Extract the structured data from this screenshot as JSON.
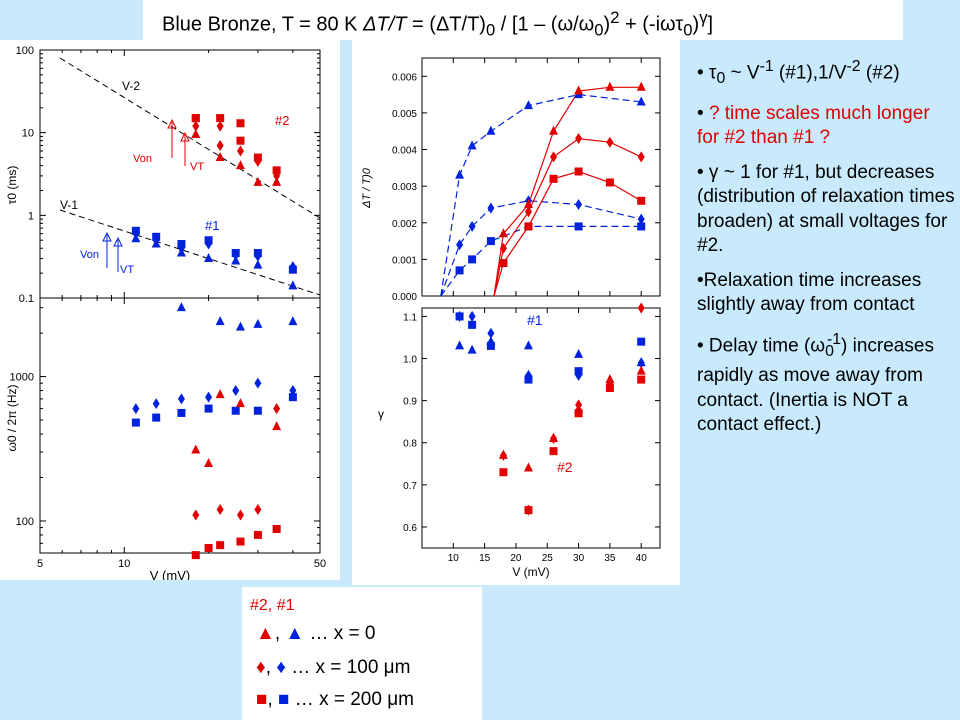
{
  "title": {
    "part1": "Blue Bronze, T = 80 K   ",
    "part2": "ΔT/T",
    "part3": " = (ΔT/T)",
    "sub0": "0",
    "part4": " / [1 – (ω/ω",
    "sub1": "0",
    "part5": ")",
    "sup2": "2",
    "part6": " + (-iωτ",
    "sub2": "0",
    "part7": ")",
    "supg": "γ",
    "part8": "]"
  },
  "legend": {
    "header": "#2, #1",
    "rows": [
      {
        "red": "▲",
        "sep": ", ",
        "blue": "▲",
        "text": " … x = 0"
      },
      {
        "red": "♦",
        "sep": ", ",
        "blue": "♦",
        "text": " … x = 100 μm"
      },
      {
        "red": "■",
        "sep": ", ",
        "blue": "■",
        "text": " … x = 200 μm"
      }
    ]
  },
  "bullets": [
    {
      "pre": "•  τ",
      "sub": "0",
      "mid": " ~ V",
      "sup": "-1",
      "post": " (#1),1/V",
      "sup2": "-2",
      "post2": " (#2)"
    },
    {
      "pre": "• ",
      "red": "? time scales much longer for #2 than #1 ?"
    },
    {
      "text": "• γ ~ 1 for #1, but decreases (distribution of relaxation times broaden) at small voltages for #2."
    },
    {
      "text": "•Relaxation time increases slightly away from contact"
    },
    {
      "pre": "• Delay time (ω",
      "sub": "0",
      "sup": "-1",
      "post": ") increases rapidly as move away from contact.  (Inertia is NOT a contact effect.)"
    }
  ],
  "colors": {
    "red": "#e00000",
    "blue": "#0022dd",
    "background": "#c8eafc"
  },
  "chart_data": [
    {
      "id": "tau0",
      "type": "scatter",
      "xscale": "log",
      "yscale": "log",
      "xlim": [
        5,
        50
      ],
      "ylim": [
        0.1,
        100
      ],
      "ylabel": "τ0 (ms)",
      "yticks": [
        "100",
        "10",
        "1",
        "0.1"
      ],
      "annotations": [
        "V-2",
        "V-1",
        "#2",
        "#1",
        "Von",
        "VT",
        "Von",
        "VT"
      ],
      "series": [
        {
          "name": "#2 x=0",
          "marker": "triangle",
          "color": "red",
          "points": [
            [
              18,
              9.5
            ],
            [
              22,
              5
            ],
            [
              26,
              4
            ],
            [
              30,
              2.5
            ],
            [
              35,
              2.5
            ]
          ]
        },
        {
          "name": "#2 x=100um",
          "marker": "diamond",
          "color": "red",
          "points": [
            [
              18,
              12
            ],
            [
              22,
              12
            ],
            [
              22,
              7
            ],
            [
              26,
              6
            ],
            [
              30,
              4.5
            ],
            [
              35,
              3
            ]
          ]
        },
        {
          "name": "#2 x=200um",
          "marker": "square",
          "color": "red",
          "points": [
            [
              18,
              15
            ],
            [
              18,
              15
            ],
            [
              22,
              15
            ],
            [
              26,
              13
            ],
            [
              26,
              8
            ],
            [
              30,
              5
            ],
            [
              35,
              3.5
            ]
          ]
        },
        {
          "name": "#1 x=0",
          "marker": "triangle",
          "color": "blue",
          "points": [
            [
              11,
              0.52
            ],
            [
              13,
              0.45
            ],
            [
              16,
              0.35
            ],
            [
              20,
              0.3
            ],
            [
              25,
              0.28
            ],
            [
              30,
              0.25
            ],
            [
              40,
              0.14
            ]
          ]
        },
        {
          "name": "#1 x=100um",
          "marker": "diamond",
          "color": "blue",
          "points": [
            [
              11,
              0.6
            ],
            [
              13,
              0.5
            ],
            [
              16,
              0.4
            ],
            [
              20,
              0.45
            ],
            [
              25,
              0.33
            ],
            [
              30,
              0.32
            ],
            [
              40,
              0.24
            ]
          ]
        },
        {
          "name": "#1 x=200um",
          "marker": "square",
          "color": "blue",
          "points": [
            [
              11,
              0.65
            ],
            [
              13,
              0.55
            ],
            [
              16,
              0.45
            ],
            [
              20,
              0.5
            ],
            [
              25,
              0.35
            ],
            [
              30,
              0.35
            ],
            [
              40,
              0.22
            ]
          ]
        }
      ]
    },
    {
      "id": "omega0",
      "type": "scatter",
      "xscale": "log",
      "yscale": "log",
      "xlim": [
        5,
        50
      ],
      "ylim": [
        60,
        3500
      ],
      "xlabel": "V  (mV)",
      "ylabel": "ω0 / 2π (Hz)",
      "xticks": [
        "5",
        "10",
        "50"
      ],
      "yticks": [
        "1000",
        "100"
      ],
      "series": [
        {
          "name": "#1 x=0",
          "marker": "triangle",
          "color": "blue",
          "points": [
            [
              16,
              3000
            ],
            [
              22,
              2400
            ],
            [
              26,
              2200
            ],
            [
              30,
              2300
            ],
            [
              40,
              2400
            ]
          ]
        },
        {
          "name": "#1 x=100um",
          "marker": "diamond",
          "color": "blue",
          "points": [
            [
              11,
              600
            ],
            [
              13,
              650
            ],
            [
              16,
              700
            ],
            [
              20,
              720
            ],
            [
              25,
              800
            ],
            [
              30,
              900
            ],
            [
              40,
              800
            ]
          ]
        },
        {
          "name": "#1 x=200um",
          "marker": "square",
          "color": "blue",
          "points": [
            [
              11,
              480
            ],
            [
              13,
              520
            ],
            [
              16,
              560
            ],
            [
              20,
              600
            ],
            [
              25,
              580
            ],
            [
              30,
              580
            ],
            [
              40,
              720
            ]
          ]
        },
        {
          "name": "#2 x=0",
          "marker": "triangle",
          "color": "red",
          "points": [
            [
              18,
              310
            ],
            [
              20,
              250
            ],
            [
              22,
              750
            ],
            [
              26,
              650
            ],
            [
              35,
              450
            ]
          ]
        },
        {
          "name": "#2 x=100um",
          "marker": "diamond",
          "color": "red",
          "points": [
            [
              18,
              110
            ],
            [
              22,
              120
            ],
            [
              26,
              110
            ],
            [
              30,
              120
            ],
            [
              35,
              600
            ]
          ]
        },
        {
          "name": "#2 x=200um",
          "marker": "square",
          "color": "red",
          "points": [
            [
              18,
              58
            ],
            [
              20,
              65
            ],
            [
              22,
              68
            ],
            [
              26,
              72
            ],
            [
              30,
              80
            ],
            [
              35,
              88
            ]
          ]
        }
      ]
    },
    {
      "id": "dTT0",
      "type": "scatter",
      "xlim": [
        5,
        43
      ],
      "ylim": [
        0,
        0.0065
      ],
      "ylabel": "ΔT / T)0",
      "yticks": [
        "0.000",
        "0.001",
        "0.002",
        "0.003",
        "0.004",
        "0.005",
        "0.006"
      ],
      "series": [
        {
          "name": "#1 x=0",
          "marker": "triangle",
          "color": "blue",
          "points": [
            [
              11,
              0.0033
            ],
            [
              13,
              0.0041
            ],
            [
              16,
              0.0045
            ],
            [
              22,
              0.0052
            ],
            [
              30,
              0.0055
            ],
            [
              40,
              0.0053
            ]
          ],
          "fit": "dashed"
        },
        {
          "name": "#1 x=100um",
          "marker": "diamond",
          "color": "blue",
          "points": [
            [
              11,
              0.0014
            ],
            [
              13,
              0.0019
            ],
            [
              16,
              0.0024
            ],
            [
              22,
              0.0026
            ],
            [
              30,
              0.0025
            ],
            [
              40,
              0.0021
            ]
          ],
          "fit": "dashed"
        },
        {
          "name": "#1 x=200um",
          "marker": "square",
          "color": "blue",
          "points": [
            [
              11,
              0.0007
            ],
            [
              13,
              0.001
            ],
            [
              16,
              0.0015
            ],
            [
              22,
              0.0019
            ],
            [
              30,
              0.0019
            ],
            [
              40,
              0.0019
            ]
          ],
          "fit": "dashed"
        },
        {
          "name": "#2 x=0",
          "marker": "triangle",
          "color": "red",
          "points": [
            [
              18,
              0.0017
            ],
            [
              22,
              0.0025
            ],
            [
              26,
              0.0045
            ],
            [
              30,
              0.0056
            ],
            [
              35,
              0.0057
            ],
            [
              40,
              0.0057
            ]
          ],
          "fit": "solid"
        },
        {
          "name": "#2 x=100um",
          "marker": "diamond",
          "color": "red",
          "points": [
            [
              18,
              0.0013
            ],
            [
              22,
              0.0023
            ],
            [
              26,
              0.0038
            ],
            [
              30,
              0.0043
            ],
            [
              35,
              0.0042
            ],
            [
              40,
              0.0038
            ]
          ],
          "fit": "solid"
        },
        {
          "name": "#2 x=200um",
          "marker": "square",
          "color": "red",
          "points": [
            [
              18,
              0.0009
            ],
            [
              22,
              0.0019
            ],
            [
              26,
              0.0032
            ],
            [
              30,
              0.0034
            ],
            [
              35,
              0.0031
            ],
            [
              40,
              0.0026
            ]
          ],
          "fit": "solid"
        }
      ]
    },
    {
      "id": "gamma",
      "type": "scatter",
      "xlim": [
        5,
        43
      ],
      "ylim": [
        0.55,
        1.12
      ],
      "xlabel": "V   (mV)",
      "ylabel": "γ",
      "xticks": [
        "10",
        "15",
        "20",
        "25",
        "30",
        "35",
        "40"
      ],
      "yticks": [
        "0.6",
        "0.7",
        "0.8",
        "0.9",
        "1.0",
        "1.1"
      ],
      "annotations": [
        "#1",
        "#2"
      ],
      "series": [
        {
          "name": "#1 x=0",
          "marker": "triangle",
          "color": "blue",
          "points": [
            [
              11,
              1.03
            ],
            [
              13,
              1.02
            ],
            [
              16,
              1.04
            ],
            [
              22,
              1.03
            ],
            [
              30,
              1.01
            ],
            [
              40,
              0.99
            ]
          ]
        },
        {
          "name": "#1 x=100um",
          "marker": "diamond",
          "color": "blue",
          "points": [
            [
              11,
              1.1
            ],
            [
              13,
              1.1
            ],
            [
              16,
              1.06
            ],
            [
              22,
              0.96
            ],
            [
              30,
              0.96
            ],
            [
              40,
              0.99
            ]
          ]
        },
        {
          "name": "#1 x=200um",
          "marker": "square",
          "color": "blue",
          "points": [
            [
              11,
              1.1
            ],
            [
              13,
              1.08
            ],
            [
              16,
              1.03
            ],
            [
              22,
              0.95
            ],
            [
              30,
              0.97
            ],
            [
              40,
              1.04
            ]
          ]
        },
        {
          "name": "#2 x=0",
          "marker": "triangle",
          "color": "red",
          "points": [
            [
              18,
              0.77
            ],
            [
              22,
              0.74
            ],
            [
              26,
              0.81
            ],
            [
              30,
              0.88
            ],
            [
              35,
              0.95
            ],
            [
              40,
              0.97
            ]
          ]
        },
        {
          "name": "#2 x=100um",
          "marker": "diamond",
          "color": "red",
          "points": [
            [
              18,
              0.77
            ],
            [
              22,
              0.64
            ],
            [
              26,
              0.81
            ],
            [
              30,
              0.89
            ],
            [
              35,
              0.94
            ],
            [
              40,
              1.12
            ]
          ]
        },
        {
          "name": "#2 x=200um",
          "marker": "square",
          "color": "red",
          "points": [
            [
              18,
              0.73
            ],
            [
              22,
              0.64
            ],
            [
              26,
              0.78
            ],
            [
              30,
              0.87
            ],
            [
              35,
              0.93
            ],
            [
              40,
              0.95
            ]
          ]
        }
      ]
    }
  ]
}
